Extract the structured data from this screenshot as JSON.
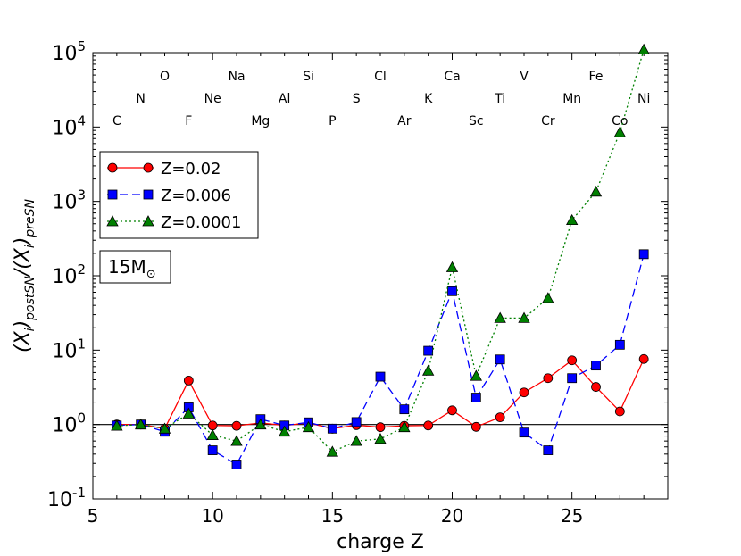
{
  "chart_data": {
    "type": "line",
    "xlabel": "charge Z",
    "ylabel": "(X_i)_postSN/(X_i)_preSN",
    "xlim": [
      5,
      29
    ],
    "ylim": [
      0.1,
      100000
    ],
    "yscale": "log",
    "xticks": [
      5,
      10,
      15,
      20,
      25
    ],
    "yticks": [
      {
        "value": 0.1,
        "base": "10",
        "exp": "-1"
      },
      {
        "value": 1,
        "base": "10",
        "exp": "0"
      },
      {
        "value": 10,
        "base": "10",
        "exp": "1"
      },
      {
        "value": 100,
        "base": "10",
        "exp": "2"
      },
      {
        "value": 1000,
        "base": "10",
        "exp": "3"
      },
      {
        "value": 10000,
        "base": "10",
        "exp": "4"
      },
      {
        "value": 100000,
        "base": "10",
        "exp": "5"
      }
    ],
    "reference_line": 1,
    "legend_position": "upper-left",
    "annotation": {
      "text": "15M",
      "sub": "⊙"
    },
    "elements": [
      {
        "z": 6,
        "label": "C",
        "row": 3
      },
      {
        "z": 7,
        "label": "N",
        "row": 2
      },
      {
        "z": 8,
        "label": "O",
        "row": 1
      },
      {
        "z": 9,
        "label": "F",
        "row": 3
      },
      {
        "z": 10,
        "label": "Ne",
        "row": 2
      },
      {
        "z": 11,
        "label": "Na",
        "row": 1
      },
      {
        "z": 12,
        "label": "Mg",
        "row": 3
      },
      {
        "z": 13,
        "label": "Al",
        "row": 2
      },
      {
        "z": 14,
        "label": "Si",
        "row": 1
      },
      {
        "z": 15,
        "label": "P",
        "row": 3
      },
      {
        "z": 16,
        "label": "S",
        "row": 2
      },
      {
        "z": 17,
        "label": "Cl",
        "row": 1
      },
      {
        "z": 18,
        "label": "Ar",
        "row": 3
      },
      {
        "z": 19,
        "label": "K",
        "row": 2
      },
      {
        "z": 20,
        "label": "Ca",
        "row": 1
      },
      {
        "z": 21,
        "label": "Sc",
        "row": 3
      },
      {
        "z": 22,
        "label": "Ti",
        "row": 2
      },
      {
        "z": 23,
        "label": "V",
        "row": 1
      },
      {
        "z": 24,
        "label": "Cr",
        "row": 3
      },
      {
        "z": 25,
        "label": "Mn",
        "row": 2
      },
      {
        "z": 26,
        "label": "Fe",
        "row": 1
      },
      {
        "z": 27,
        "label": "Co",
        "row": 3
      },
      {
        "z": 28,
        "label": "Ni",
        "row": 2
      }
    ],
    "x": [
      6,
      7,
      8,
      9,
      10,
      11,
      12,
      13,
      14,
      15,
      16,
      17,
      18,
      19,
      20,
      21,
      22,
      23,
      24,
      25,
      26,
      27,
      28
    ],
    "series": [
      {
        "name": "Z=0.02",
        "color": "#ff0000",
        "marker": "circle",
        "dash": "solid",
        "values": [
          1.0,
          1.0,
          0.88,
          3.9,
          0.97,
          0.96,
          1.05,
          0.97,
          1.05,
          0.88,
          0.98,
          0.92,
          0.96,
          0.97,
          1.55,
          0.93,
          1.25,
          2.7,
          4.2,
          7.3,
          3.2,
          1.5,
          7.6
        ]
      },
      {
        "name": "Z=0.006",
        "color": "#0000ff",
        "marker": "square",
        "dash": "dashed",
        "values": [
          0.97,
          1.0,
          0.8,
          1.7,
          0.45,
          0.29,
          1.18,
          0.97,
          1.07,
          0.88,
          1.08,
          4.4,
          1.6,
          9.8,
          62,
          2.3,
          7.5,
          0.78,
          0.45,
          4.2,
          6.2,
          11.8,
          195
        ]
      },
      {
        "name": "Z=0.0001",
        "color": "#008000",
        "marker": "triangle",
        "dash": "dotted",
        "values": [
          0.96,
          1.0,
          0.88,
          1.4,
          0.72,
          0.6,
          1.0,
          0.8,
          0.92,
          0.43,
          0.6,
          0.64,
          0.92,
          5.3,
          130,
          4.5,
          27,
          27,
          50,
          560,
          1350,
          8500,
          110000
        ]
      }
    ]
  }
}
